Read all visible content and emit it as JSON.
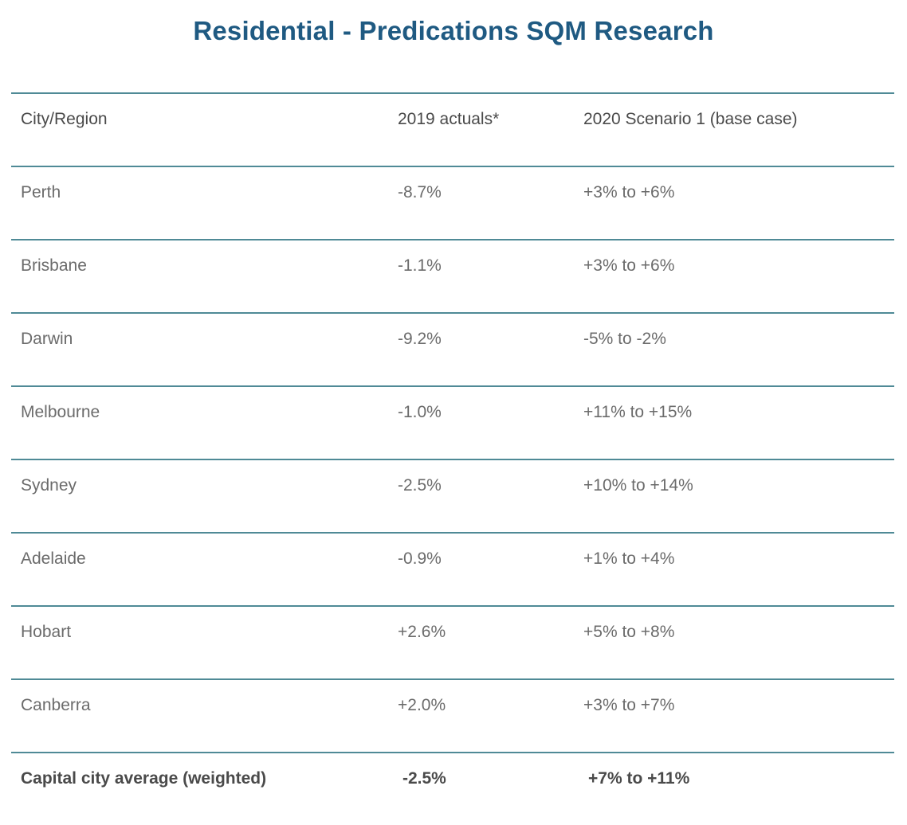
{
  "title": "Residential - Predications SQM Research",
  "table": {
    "headers": [
      "City/Region",
      "2019 actuals*",
      "2020 Scenario 1 (base case)"
    ],
    "rows": [
      [
        "Perth",
        "-8.7%",
        "+3% to +6%"
      ],
      [
        "Brisbane",
        "-1.1%",
        "+3% to +6%"
      ],
      [
        "Darwin",
        "-9.2%",
        "-5% to -2%"
      ],
      [
        "Melbourne",
        "-1.0%",
        "+11% to +15%"
      ],
      [
        "Sydney",
        "-2.5%",
        "+10% to +14%"
      ],
      [
        "Adelaide",
        "-0.9%",
        "+1% to +4%"
      ],
      [
        "Hobart",
        "+2.6%",
        "+5% to +8%"
      ],
      [
        "Canberra",
        "+2.0%",
        "+3% to +7%"
      ]
    ],
    "footer": [
      "Capital city average (weighted)",
      "-2.5%",
      "+7% to +11%"
    ]
  },
  "colors": {
    "title": "#1f5a82",
    "rule": "#4f8a96",
    "text": "#6b6b6b"
  }
}
